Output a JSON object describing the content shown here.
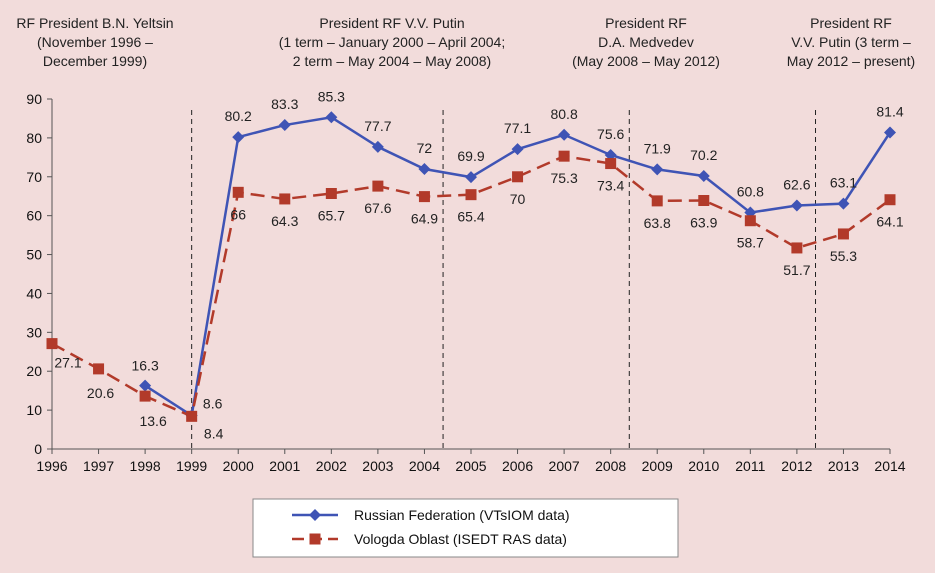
{
  "chart_data": {
    "type": "line",
    "x": [
      1996,
      1997,
      1998,
      1999,
      2000,
      2001,
      2002,
      2003,
      2004,
      2005,
      2006,
      2007,
      2008,
      2009,
      2010,
      2011,
      2012,
      2013,
      2014
    ],
    "ylim": [
      0,
      90
    ],
    "yticks": [
      0,
      10,
      20,
      30,
      40,
      50,
      60,
      70,
      80,
      90
    ],
    "grid": false,
    "legend_position": "bottom-center",
    "series": [
      {
        "name": "Russian Federation (VTsIOM data)",
        "color": "#3f54b5",
        "marker": "diamond",
        "dash": "solid",
        "values": [
          null,
          null,
          16.3,
          8.6,
          80.2,
          83.3,
          85.3,
          77.7,
          72,
          69.9,
          77.1,
          80.8,
          75.6,
          71.9,
          70.2,
          60.8,
          62.6,
          63.1,
          81.4
        ],
        "labels": [
          "",
          "",
          "16.3",
          "8.6",
          "80.2",
          "83.3",
          "85.3",
          "77.7",
          "72",
          "69.9",
          "77.1",
          "80.8",
          "75.6",
          "71.9",
          "70.2",
          "60.8",
          "62.6",
          "63.1",
          "81.4"
        ]
      },
      {
        "name": "Vologda Oblast (ISEDT RAS data)",
        "color": "#b23a2a",
        "marker": "square",
        "dash": "dashed",
        "values": [
          27.1,
          20.6,
          13.6,
          8.4,
          66,
          64.3,
          65.7,
          67.6,
          64.9,
          65.4,
          70,
          75.3,
          73.4,
          63.8,
          63.9,
          58.7,
          51.7,
          55.3,
          64.1
        ],
        "labels": [
          "27.1",
          "20.6",
          "13.6",
          "8.4",
          "66",
          "64.3",
          "65.7",
          "67.6",
          "64.9",
          "65.4",
          "70",
          "75.3",
          "73.4",
          "63.8",
          "63.9",
          "58.7",
          "51.7",
          "55.3",
          "64.1"
        ]
      }
    ],
    "periods": [
      {
        "lines": [
          "RF President B.N. Yeltsin",
          "(November 1996 –",
          "December  1999)"
        ],
        "divider_after_year": null
      },
      {
        "lines": [
          "President RF V.V. Putin",
          "(1 term – January 2000 – April 2004;",
          "2 term – May 2004 – May 2008)"
        ],
        "divider_after_year": 1999
      },
      {
        "lines": [
          "President RF",
          "D.A. Medvedev",
          "(May 2008 – May 2012)"
        ],
        "divider_after_year": 2008.4
      },
      {
        "lines": [
          "President RF",
          "V.V. Putin (3 term –",
          "May 2012 – present)"
        ],
        "divider_after_year": 2012.4
      }
    ],
    "extra_dividers": [
      2004.4
    ]
  }
}
